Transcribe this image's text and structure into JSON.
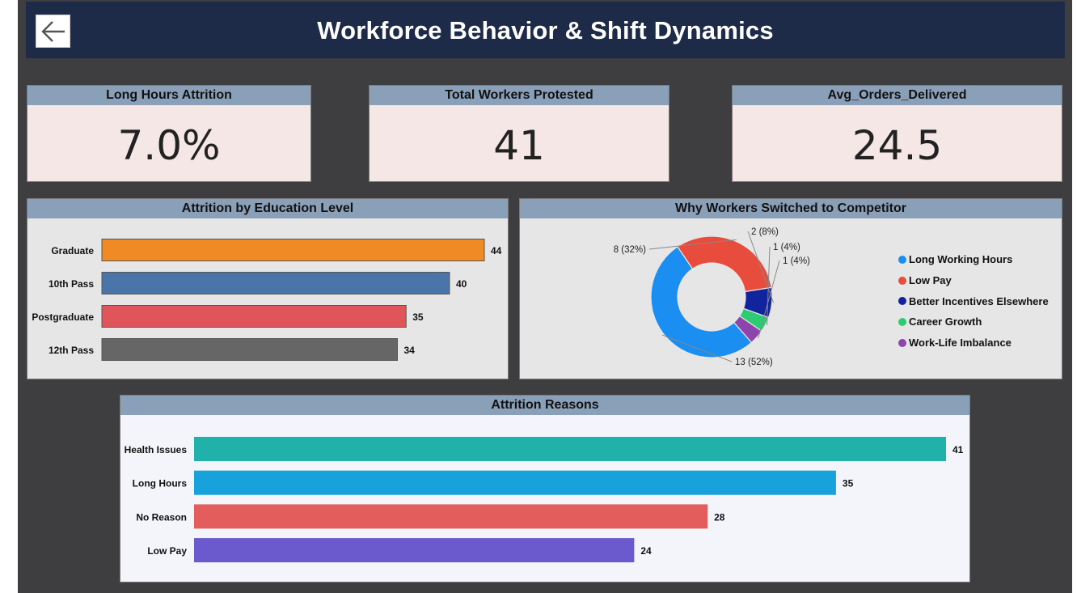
{
  "header": {
    "title": "Workforce Behavior & Shift Dynamics",
    "back_icon": "arrow-left-icon"
  },
  "kpis": {
    "long_hours_attrition": {
      "label": "Long Hours Attrition",
      "value": "7.0%"
    },
    "total_workers_protested": {
      "label": "Total Workers Protested",
      "value": "41"
    },
    "avg_orders_delivered": {
      "label": "Avg_Orders_Delivered",
      "value": "24.5"
    }
  },
  "chart_data": [
    {
      "type": "bar",
      "orientation": "horizontal",
      "title": "Attrition by Education Level",
      "categories": [
        "Graduate",
        "10th Pass",
        "Postgraduate",
        "12th Pass"
      ],
      "values": [
        44,
        40,
        35,
        34
      ],
      "colors": [
        "#f08a24",
        "#4a75a8",
        "#e0555a",
        "#666666"
      ],
      "value_labels": true,
      "grid": false
    },
    {
      "type": "pie",
      "variant": "donut",
      "title": "Why Workers Switched to Competitor",
      "categories": [
        "Long Working Hours",
        "Low Pay",
        "Better Incentives Elsewhere",
        "Career Growth",
        "Work-Life Imbalance"
      ],
      "values": [
        13,
        8,
        2,
        1,
        1
      ],
      "slice_labels": [
        "13 (52%)",
        "8 (32%)",
        "2 (8%)",
        "1 (4%)",
        "1 (4%)"
      ],
      "colors": [
        "#1b8ef2",
        "#e84c3d",
        "#12239e",
        "#2ecc71",
        "#8e44ad"
      ],
      "legend": "right"
    },
    {
      "type": "bar",
      "orientation": "horizontal",
      "title": "Attrition Reasons",
      "categories": [
        "Health Issues",
        "Long Hours",
        "No Reason",
        "Low Pay"
      ],
      "values": [
        41,
        35,
        28,
        24
      ],
      "colors": [
        "#20b2aa",
        "#17a2db",
        "#e35d5d",
        "#6a5acd"
      ],
      "value_labels": true,
      "grid": false
    }
  ]
}
